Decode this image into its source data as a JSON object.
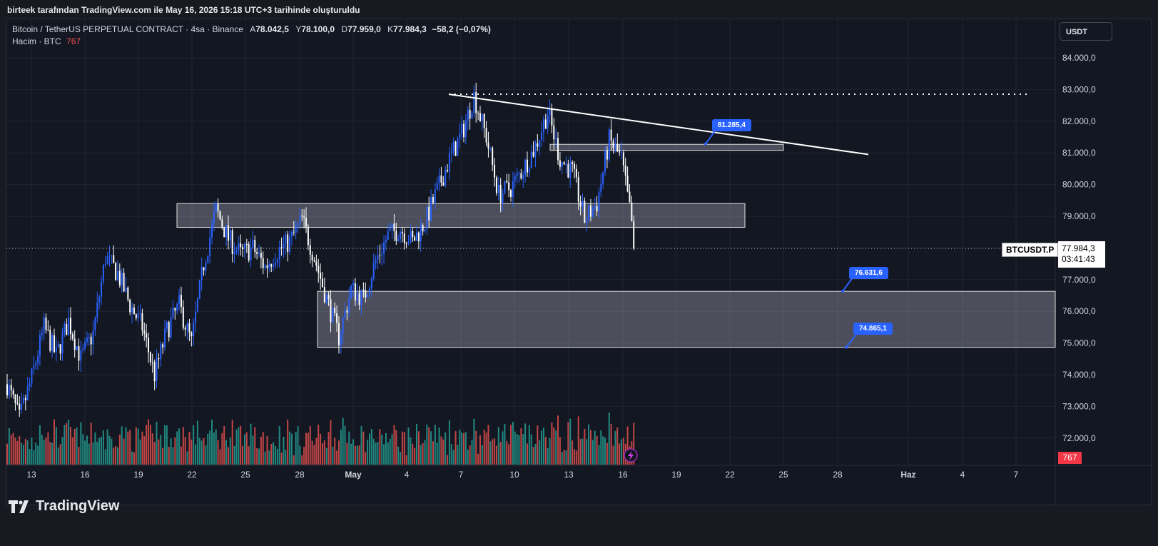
{
  "caption": "birteek tarafından TradingView.com ile May 16, 2026 15:18 UTC+3 tarihinde oluşturuldu",
  "legend": {
    "symbol": "Bitcoin / TetherUS PERPETUAL CONTRACT · 4sa · Binance",
    "o_label": "A",
    "o_val": "78.042,5",
    "h_label": "Y",
    "h_val": "78.100,0",
    "l_label": "D",
    "l_val": "77.959,0",
    "c_label": "K",
    "c_val": "77.984,3",
    "change": "−58,2 (−0,07%)",
    "volume_label": "Hacim · BTC",
    "volume_value": "767"
  },
  "currency_button": "USDT",
  "symbol_tag": "BTCUSDT.P",
  "price_tag": {
    "price": "77.984,3",
    "countdown": "03:41:43"
  },
  "volume_tag": "767",
  "brand": "TradingView",
  "colors": {
    "up": "#2962ff",
    "down": "#ffffff",
    "vol_up": "#26a69a",
    "vol_down": "#ef5350",
    "bg": "#131722",
    "grid": "#1f2430"
  },
  "callouts": [
    {
      "text": "81.285,4",
      "price": 81285.4
    },
    {
      "text": "76.631,6",
      "price": 76631.6
    },
    {
      "text": "74.865,1",
      "price": 74865.1
    }
  ],
  "chart_data": {
    "type": "candlestick",
    "title": "Bitcoin / TetherUS PERPETUAL CONTRACT · 4sa · Binance",
    "y_ticks": [
      "84.000,0",
      "83.000,0",
      "82.000,0",
      "81.000,0",
      "80.000,0",
      "79.000,0",
      "78.000,0",
      "77.000,0",
      "76.000,0",
      "75.000,0",
      "74.000,0",
      "73.000,0",
      "72.000,0"
    ],
    "x_ticks": [
      "13",
      "16",
      "19",
      "22",
      "25",
      "28",
      "May",
      "4",
      "7",
      "10",
      "13",
      "16",
      "19",
      "22",
      "25",
      "28",
      "Haz",
      "4",
      "7"
    ],
    "ylim": [
      71200,
      84600
    ],
    "close_path": [
      [
        0,
        73700
      ],
      [
        6,
        72600
      ],
      [
        12,
        73900
      ],
      [
        18,
        75500
      ],
      [
        24,
        74600
      ],
      [
        30,
        75700
      ],
      [
        36,
        74500
      ],
      [
        42,
        75300
      ],
      [
        48,
        77700
      ],
      [
        54,
        77200
      ],
      [
        60,
        76200
      ],
      [
        66,
        75500
      ],
      [
        72,
        74000
      ],
      [
        78,
        75400
      ],
      [
        84,
        76200
      ],
      [
        90,
        75000
      ],
      [
        96,
        77500
      ],
      [
        102,
        79200
      ],
      [
        108,
        78300
      ],
      [
        114,
        77800
      ],
      [
        120,
        78000
      ],
      [
        126,
        77400
      ],
      [
        132,
        77900
      ],
      [
        138,
        78200
      ],
      [
        144,
        78900
      ],
      [
        150,
        77700
      ],
      [
        156,
        76400
      ],
      [
        162,
        75200
      ],
      [
        168,
        76700
      ],
      [
        174,
        76400
      ],
      [
        180,
        77600
      ],
      [
        186,
        78400
      ],
      [
        192,
        78600
      ],
      [
        198,
        78200
      ],
      [
        204,
        78800
      ],
      [
        210,
        79800
      ],
      [
        216,
        80800
      ],
      [
        222,
        81600
      ],
      [
        228,
        82800
      ],
      [
        234,
        81500
      ],
      [
        240,
        79700
      ],
      [
        246,
        79900
      ],
      [
        252,
        80500
      ],
      [
        258,
        81200
      ],
      [
        264,
        82300
      ],
      [
        270,
        80800
      ],
      [
        276,
        80400
      ],
      [
        282,
        78900
      ],
      [
        288,
        79400
      ],
      [
        294,
        81400
      ],
      [
        300,
        80800
      ],
      [
        306,
        78400
      ],
      [
        312,
        77980
      ]
    ],
    "levels": {
      "dotted_high": 82850,
      "trendline": {
        "from_price": 82850,
        "to_price": 80950,
        "date_from": "May 6",
        "date_to": "May 30"
      },
      "zones": [
        {
          "from": 78650,
          "to": 79400
        },
        {
          "from": 81080,
          "to": 81270
        },
        {
          "from": 74865.1,
          "to": 76631.6
        }
      ]
    },
    "last_price": 77984.3
  }
}
